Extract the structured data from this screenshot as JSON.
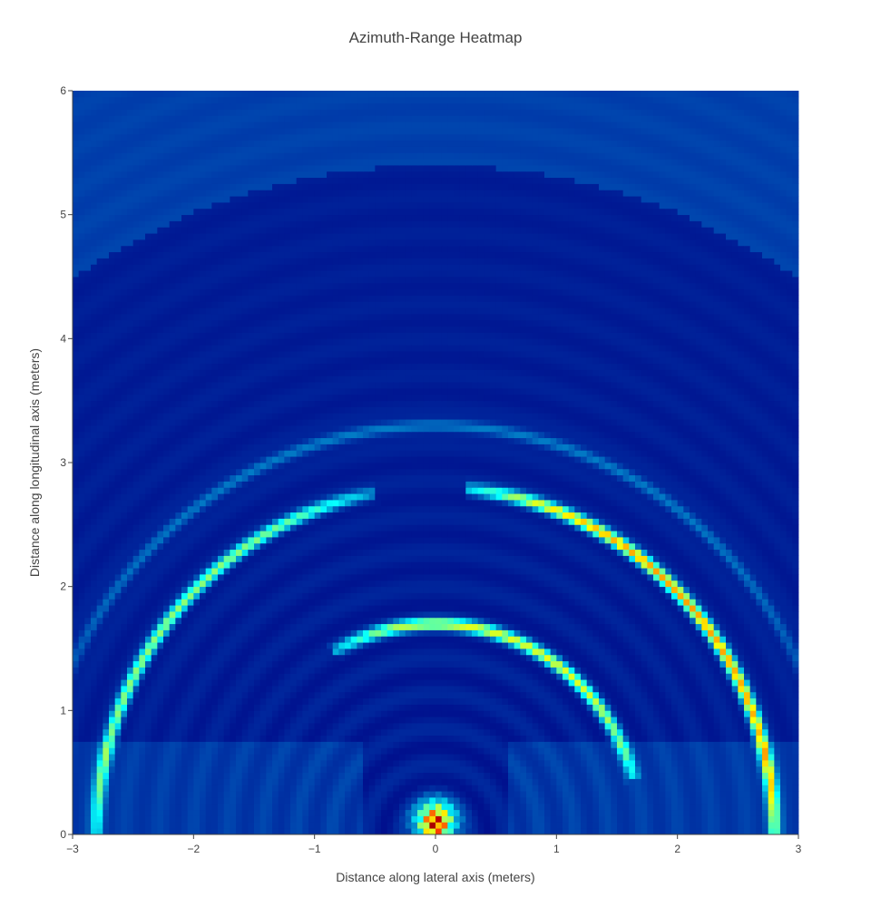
{
  "chart_data": {
    "type": "heatmap",
    "title": "Azimuth-Range Heatmap",
    "xlabel": "Distance along lateral axis (meters)",
    "ylabel": "Distance along longitudinal axis (meters)",
    "xlim": [
      -3,
      3
    ],
    "ylim": [
      0,
      6
    ],
    "x_ticks": [
      -3,
      -2,
      -1,
      0,
      1,
      2,
      3
    ],
    "x_tick_labels": [
      "−3",
      "−2",
      "−1",
      "0",
      "1",
      "2",
      "3"
    ],
    "y_ticks": [
      0,
      1,
      2,
      3,
      4,
      5,
      6
    ],
    "y_tick_labels": [
      "0",
      "1",
      "2",
      "3",
      "4",
      "5",
      "6"
    ],
    "colorscale": "Jet",
    "grid": false,
    "features": [
      {
        "kind": "arc",
        "range": 2.8,
        "angle_from_deg": 0,
        "angle_to_deg": 80,
        "intensity": 0.65
      },
      {
        "kind": "arc",
        "range": 2.8,
        "angle_from_deg": 105,
        "angle_to_deg": 178,
        "intensity": 0.45
      },
      {
        "kind": "arc",
        "range": 1.7,
        "angle_from_deg": 20,
        "angle_to_deg": 115,
        "intensity": 0.52
      },
      {
        "kind": "arc",
        "range": 3.3,
        "angle_from_deg": 15,
        "angle_to_deg": 165,
        "intensity": 0.16
      },
      {
        "kind": "blob",
        "x": 0.0,
        "y": 0.1,
        "intensity": 0.95
      }
    ]
  }
}
